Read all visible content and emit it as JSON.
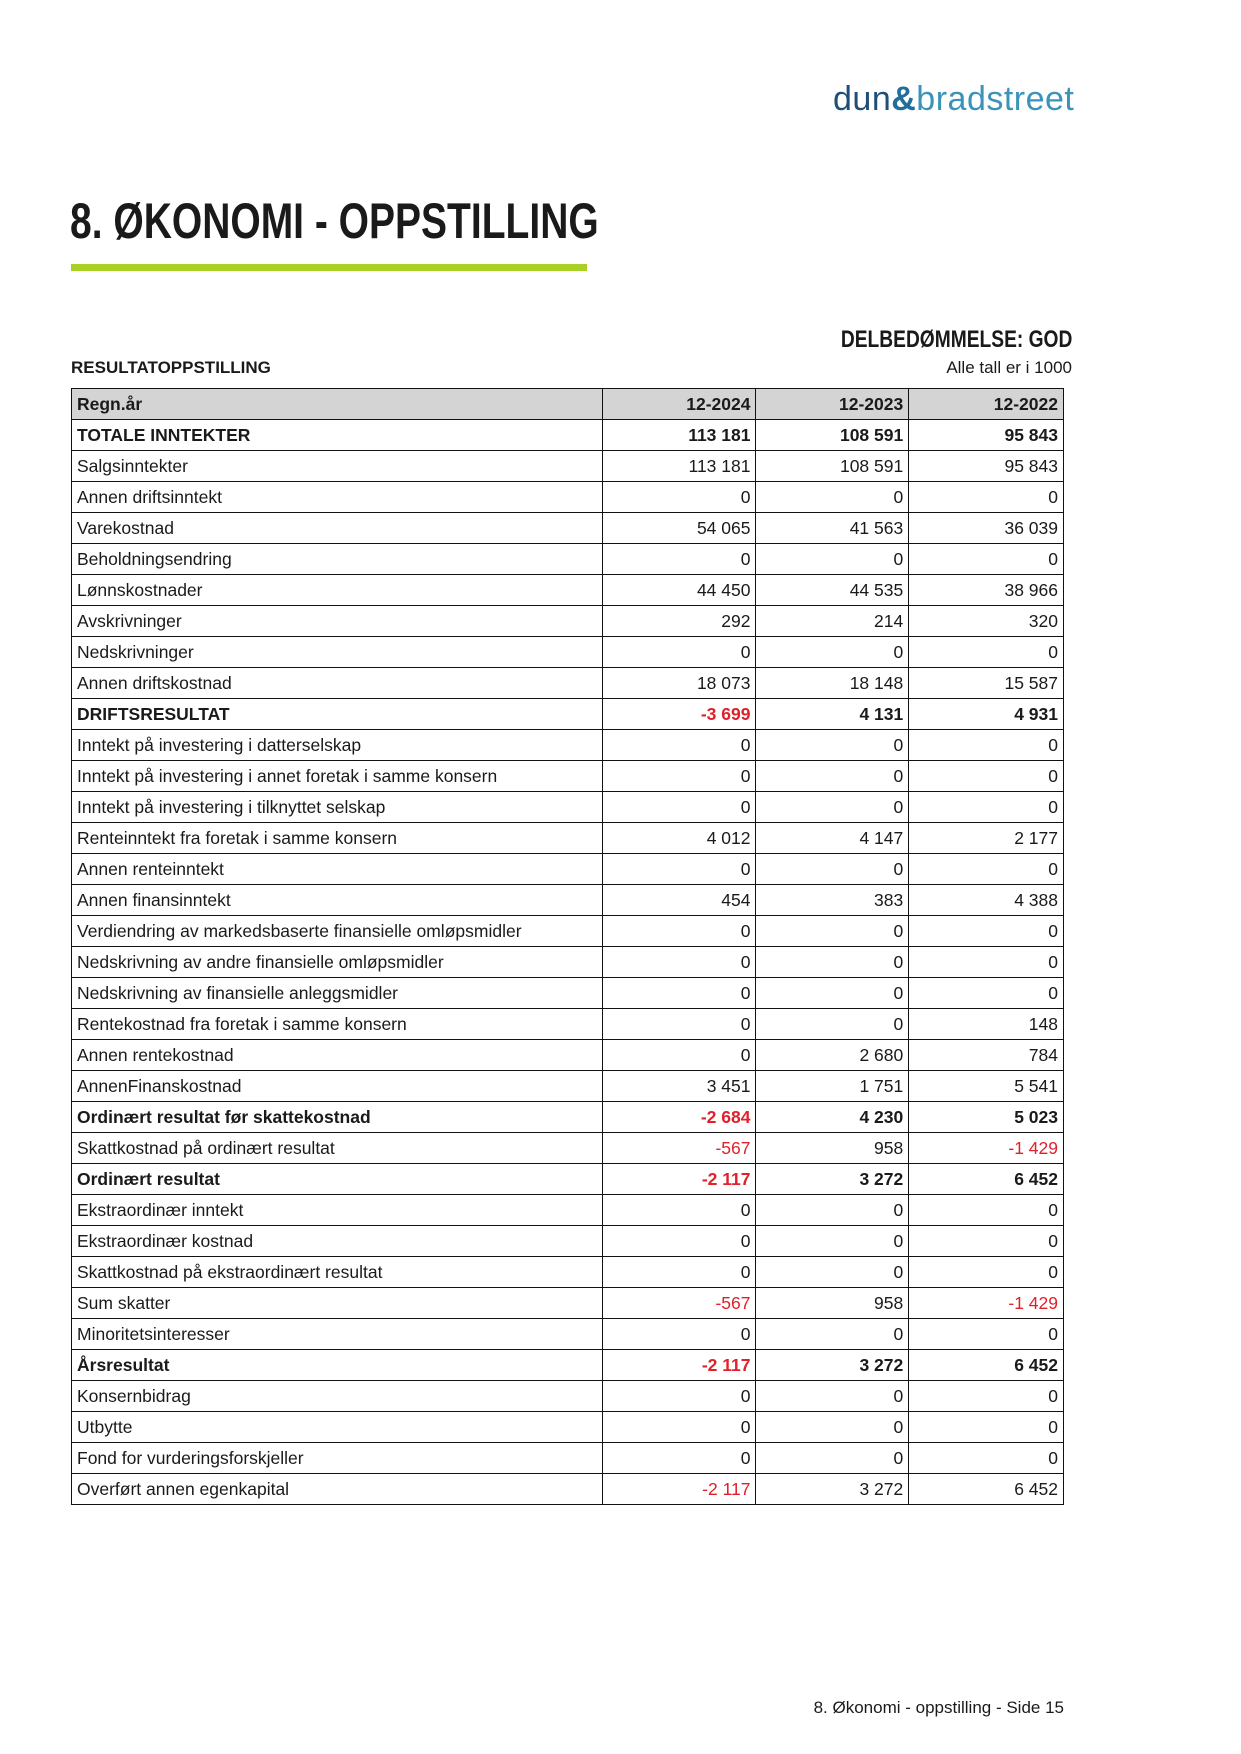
{
  "logo": {
    "part1": "dun",
    "part2": "&",
    "part3": "bradstreet"
  },
  "header": {
    "title": "8. ØKONOMI - OPPSTILLING",
    "accent_color": "#a8d124"
  },
  "rating": "DELBEDØMMELSE: GOD",
  "section_title": "RESULTATOPPSTILLING",
  "units_note": "Alle tall er i 1000",
  "table": {
    "columns": [
      "Regn.år",
      "12-2024",
      "12-2023",
      "12-2022"
    ],
    "negative_color": "#e0202a",
    "rows": [
      {
        "label": "TOTALE INNTEKTER",
        "bold": true,
        "values": [
          "113 181",
          "108 591",
          "95 843"
        ]
      },
      {
        "label": "Salgsinntekter",
        "values": [
          "113 181",
          "108 591",
          "95 843"
        ]
      },
      {
        "label": "Annen driftsinntekt",
        "values": [
          "0",
          "0",
          "0"
        ]
      },
      {
        "label": "Varekostnad",
        "values": [
          "54 065",
          "41 563",
          "36 039"
        ]
      },
      {
        "label": "Beholdningsendring",
        "values": [
          "0",
          "0",
          "0"
        ]
      },
      {
        "label": "Lønnskostnader",
        "values": [
          "44 450",
          "44 535",
          "38 966"
        ]
      },
      {
        "label": "Avskrivninger",
        "values": [
          "292",
          "214",
          "320"
        ]
      },
      {
        "label": "Nedskrivninger",
        "values": [
          "0",
          "0",
          "0"
        ]
      },
      {
        "label": "Annen driftskostnad",
        "values": [
          "18 073",
          "18 148",
          "15 587"
        ]
      },
      {
        "label": "DRIFTSRESULTAT",
        "bold": true,
        "values": [
          "-3 699",
          "4 131",
          "4 931"
        ]
      },
      {
        "label": "Inntekt på investering i datterselskap",
        "values": [
          "0",
          "0",
          "0"
        ]
      },
      {
        "label": "Inntekt på investering i annet foretak i samme konsern",
        "values": [
          "0",
          "0",
          "0"
        ]
      },
      {
        "label": "Inntekt på investering i tilknyttet selskap",
        "values": [
          "0",
          "0",
          "0"
        ]
      },
      {
        "label": "Renteinntekt fra foretak i samme konsern",
        "values": [
          "4 012",
          "4 147",
          "2 177"
        ]
      },
      {
        "label": "Annen renteinntekt",
        "values": [
          "0",
          "0",
          "0"
        ]
      },
      {
        "label": "Annen finansinntekt",
        "values": [
          "454",
          "383",
          "4 388"
        ]
      },
      {
        "label": "Verdiendring av markedsbaserte finansielle omløpsmidler",
        "values": [
          "0",
          "0",
          "0"
        ]
      },
      {
        "label": "Nedskrivning av andre finansielle omløpsmidler",
        "values": [
          "0",
          "0",
          "0"
        ]
      },
      {
        "label": "Nedskrivning av finansielle anleggsmidler",
        "values": [
          "0",
          "0",
          "0"
        ]
      },
      {
        "label": "Rentekostnad fra foretak i samme konsern",
        "values": [
          "0",
          "0",
          "148"
        ]
      },
      {
        "label": "Annen rentekostnad",
        "values": [
          "0",
          "2 680",
          "784"
        ]
      },
      {
        "label": "AnnenFinanskostnad",
        "values": [
          "3 451",
          "1 751",
          "5 541"
        ]
      },
      {
        "label": "Ordinært resultat før skattekostnad",
        "bold": true,
        "values": [
          "-2 684",
          "4 230",
          "5 023"
        ]
      },
      {
        "label": "Skattkostnad på ordinært resultat",
        "values": [
          "-567",
          "958",
          "-1 429"
        ]
      },
      {
        "label": "Ordinært resultat",
        "bold": true,
        "values": [
          "-2 117",
          "3 272",
          "6 452"
        ]
      },
      {
        "label": "Ekstraordinær inntekt",
        "values": [
          "0",
          "0",
          "0"
        ]
      },
      {
        "label": "Ekstraordinær kostnad",
        "values": [
          "0",
          "0",
          "0"
        ]
      },
      {
        "label": "Skattkostnad på ekstraordinært resultat",
        "values": [
          "0",
          "0",
          "0"
        ]
      },
      {
        "label": "Sum skatter",
        "values": [
          "-567",
          "958",
          "-1 429"
        ]
      },
      {
        "label": "Minoritetsinteresser",
        "values": [
          "0",
          "0",
          "0"
        ]
      },
      {
        "label": "Årsresultat",
        "bold": true,
        "values": [
          "-2 117",
          "3 272",
          "6 452"
        ]
      },
      {
        "label": "Konsernbidrag",
        "values": [
          "0",
          "0",
          "0"
        ]
      },
      {
        "label": "Utbytte",
        "values": [
          "0",
          "0",
          "0"
        ]
      },
      {
        "label": "Fond for vurderingsforskjeller",
        "values": [
          "0",
          "0",
          "0"
        ]
      },
      {
        "label": "Overført annen egenkapital",
        "values": [
          "-2 117",
          "3 272",
          "6 452"
        ]
      }
    ]
  },
  "footer": "8. Økonomi - oppstilling - Side 15"
}
